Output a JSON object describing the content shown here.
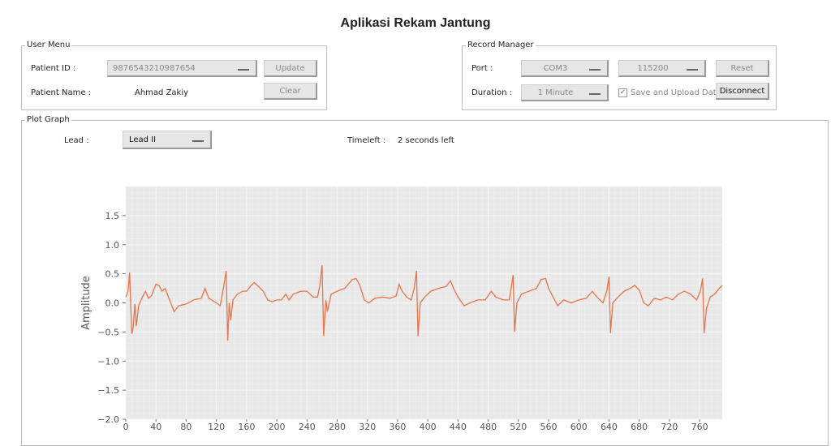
{
  "title": "Aplikasi Rekam Jantung",
  "user_menu": {
    "legend": "User Menu",
    "patient_id_label": "Patient ID  :",
    "patient_id_value": "9876543210987654",
    "patient_name_label": "Patient Name  :",
    "patient_name_value": "Ahmad Zakiy",
    "update_label": "Update",
    "clear_label": "Clear"
  },
  "record_manager": {
    "legend": "Record Manager",
    "port_label": "Port  :",
    "port_value": "COM3",
    "baud_value": "115200",
    "reset_label": "Reset",
    "duration_label": "Duration  :",
    "duration_value": "1 Minute",
    "save_upload_label": "Save and Upload Data",
    "save_upload_checked": true,
    "disconnect_label": "Disconnect"
  },
  "plot_graph": {
    "legend": "Plot Graph",
    "lead_label": "Lead  :",
    "lead_value": "Lead II",
    "timeleft_label": "Timeleft  :",
    "timeleft_value": "2 seconds left"
  },
  "chart_data": {
    "type": "line",
    "ylabel": "Amplitude",
    "xlim": [
      0,
      790
    ],
    "ylim": [
      -2.0,
      2.0
    ],
    "grid": true,
    "line_color": "#e8734a",
    "background": "#e8e8e8",
    "xticks": [
      "0",
      "40",
      "80",
      "120",
      "160",
      "200",
      "240",
      "280",
      "320",
      "360",
      "400",
      "440",
      "480",
      "520",
      "560",
      "600",
      "640",
      "680",
      "720",
      "760"
    ],
    "yticks": [
      "1.5",
      "1.0",
      "0.5",
      "0.0",
      "−0.5",
      "−1.0",
      "−1.5",
      "−2.0"
    ],
    "points": [
      [
        0,
        0.1
      ],
      [
        3,
        0.2
      ],
      [
        5,
        0.52
      ],
      [
        8,
        -0.53
      ],
      [
        10,
        -0.4
      ],
      [
        12,
        -0.02
      ],
      [
        14,
        -0.4
      ],
      [
        17,
        -0.05
      ],
      [
        22,
        0.1
      ],
      [
        26,
        0.2
      ],
      [
        30,
        0.08
      ],
      [
        34,
        0.12
      ],
      [
        40,
        0.32
      ],
      [
        44,
        0.3
      ],
      [
        48,
        0.2
      ],
      [
        52,
        0.25
      ],
      [
        58,
        0.05
      ],
      [
        64,
        -0.15
      ],
      [
        70,
        -0.05
      ],
      [
        80,
        -0.02
      ],
      [
        90,
        0.05
      ],
      [
        100,
        0.08
      ],
      [
        105,
        0.25
      ],
      [
        110,
        0.08
      ],
      [
        120,
        0.0
      ],
      [
        125,
        -0.05
      ],
      [
        130,
        0.3
      ],
      [
        133,
        0.55
      ],
      [
        135,
        -0.65
      ],
      [
        137,
        0.0
      ],
      [
        139,
        -0.3
      ],
      [
        142,
        0.05
      ],
      [
        148,
        0.15
      ],
      [
        155,
        0.2
      ],
      [
        160,
        0.2
      ],
      [
        166,
        0.3
      ],
      [
        170,
        0.35
      ],
      [
        176,
        0.28
      ],
      [
        182,
        0.2
      ],
      [
        188,
        0.05
      ],
      [
        194,
        0.02
      ],
      [
        200,
        0.05
      ],
      [
        206,
        0.05
      ],
      [
        212,
        0.15
      ],
      [
        216,
        0.05
      ],
      [
        222,
        0.15
      ],
      [
        232,
        0.2
      ],
      [
        240,
        0.2
      ],
      [
        248,
        0.1
      ],
      [
        254,
        0.1
      ],
      [
        257,
        0.3
      ],
      [
        260,
        0.65
      ],
      [
        262,
        -0.57
      ],
      [
        265,
        0.05
      ],
      [
        267,
        -0.15
      ],
      [
        272,
        0.15
      ],
      [
        280,
        0.2
      ],
      [
        290,
        0.25
      ],
      [
        300,
        0.4
      ],
      [
        305,
        0.42
      ],
      [
        310,
        0.3
      ],
      [
        316,
        0.05
      ],
      [
        322,
        0.0
      ],
      [
        330,
        0.08
      ],
      [
        340,
        0.1
      ],
      [
        350,
        0.08
      ],
      [
        358,
        0.12
      ],
      [
        362,
        0.32
      ],
      [
        366,
        0.2
      ],
      [
        372,
        0.1
      ],
      [
        378,
        0.05
      ],
      [
        382,
        0.25
      ],
      [
        385,
        0.55
      ],
      [
        387,
        -0.57
      ],
      [
        390,
        0.0
      ],
      [
        396,
        0.1
      ],
      [
        404,
        0.2
      ],
      [
        414,
        0.25
      ],
      [
        424,
        0.28
      ],
      [
        430,
        0.38
      ],
      [
        434,
        0.25
      ],
      [
        440,
        0.1
      ],
      [
        448,
        -0.05
      ],
      [
        456,
        0.0
      ],
      [
        466,
        0.05
      ],
      [
        476,
        0.05
      ],
      [
        484,
        0.2
      ],
      [
        490,
        0.1
      ],
      [
        500,
        0.05
      ],
      [
        508,
        0.05
      ],
      [
        511,
        0.3
      ],
      [
        513,
        0.48
      ],
      [
        515,
        -0.5
      ],
      [
        518,
        0.0
      ],
      [
        524,
        0.15
      ],
      [
        534,
        0.2
      ],
      [
        544,
        0.25
      ],
      [
        550,
        0.4
      ],
      [
        556,
        0.42
      ],
      [
        560,
        0.25
      ],
      [
        566,
        0.1
      ],
      [
        572,
        -0.05
      ],
      [
        580,
        0.05
      ],
      [
        590,
        0.0
      ],
      [
        600,
        0.05
      ],
      [
        610,
        0.08
      ],
      [
        618,
        0.2
      ],
      [
        624,
        0.1
      ],
      [
        632,
        0.0
      ],
      [
        637,
        0.2
      ],
      [
        640,
        0.45
      ],
      [
        642,
        -0.52
      ],
      [
        645,
        0.0
      ],
      [
        652,
        0.1
      ],
      [
        660,
        0.2
      ],
      [
        668,
        0.25
      ],
      [
        674,
        0.3
      ],
      [
        680,
        0.22
      ],
      [
        686,
        0.0
      ],
      [
        692,
        -0.05
      ],
      [
        700,
        0.08
      ],
      [
        708,
        0.05
      ],
      [
        716,
        0.1
      ],
      [
        724,
        0.05
      ],
      [
        732,
        0.15
      ],
      [
        740,
        0.2
      ],
      [
        748,
        0.15
      ],
      [
        756,
        0.05
      ],
      [
        761,
        0.2
      ],
      [
        764,
        0.42
      ],
      [
        766,
        -0.52
      ],
      [
        769,
        -0.1
      ],
      [
        774,
        0.1
      ],
      [
        780,
        0.15
      ],
      [
        786,
        0.25
      ],
      [
        790,
        0.3
      ]
    ]
  }
}
